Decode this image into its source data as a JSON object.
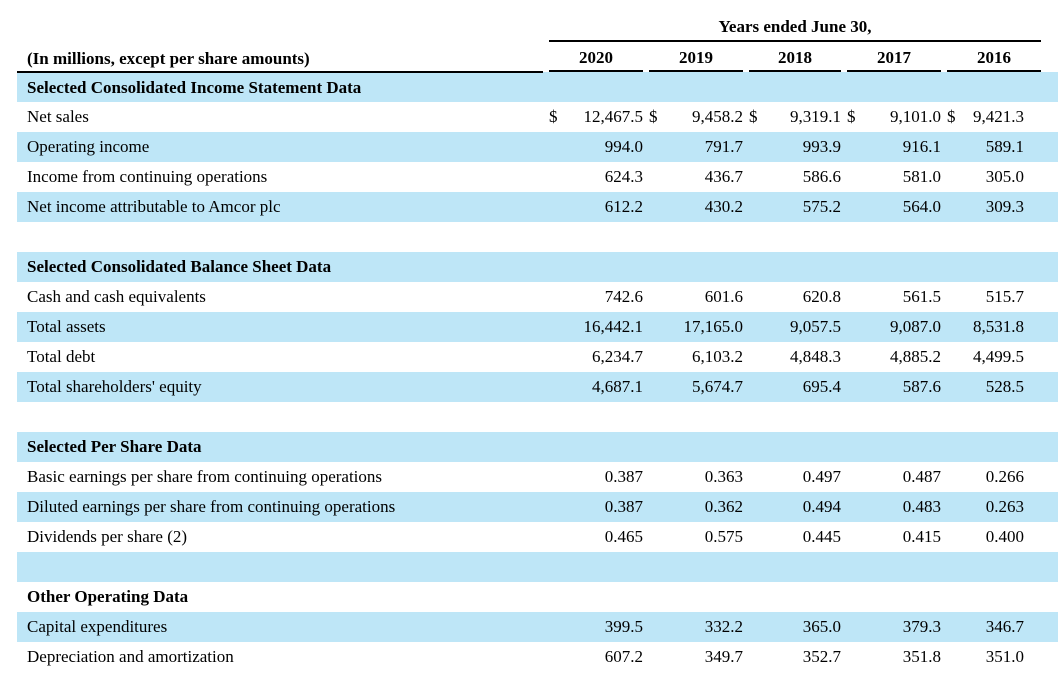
{
  "title": "Years ended June 30,",
  "unit_label": "(In millions, except per share amounts)",
  "currency_symbol": "$",
  "years": [
    "2020",
    "2019",
    "2018",
    "2017",
    "2016"
  ],
  "stripe_color": "#BEE6F7",
  "rule_color": "#000000",
  "sections": [
    {
      "header": "Selected Consolidated Income Statement Data",
      "rows": [
        {
          "label": "Net sales",
          "dollar": true,
          "values": [
            "12,467.5",
            "9,458.2",
            "9,319.1",
            "9,101.0",
            "9,421.3"
          ]
        },
        {
          "label": "Operating income",
          "dollar": false,
          "values": [
            "994.0",
            "791.7",
            "993.9",
            "916.1",
            "589.1"
          ]
        },
        {
          "label": "Income from continuing operations",
          "dollar": false,
          "values": [
            "624.3",
            "436.7",
            "586.6",
            "581.0",
            "305.0"
          ]
        },
        {
          "label": "Net income attributable to Amcor plc",
          "dollar": false,
          "values": [
            "612.2",
            "430.2",
            "575.2",
            "564.0",
            "309.3"
          ]
        }
      ]
    },
    {
      "header": "Selected Consolidated Balance Sheet Data",
      "rows": [
        {
          "label": "Cash and cash equivalents",
          "dollar": false,
          "values": [
            "742.6",
            "601.6",
            "620.8",
            "561.5",
            "515.7"
          ]
        },
        {
          "label": "Total assets",
          "dollar": false,
          "values": [
            "16,442.1",
            "17,165.0",
            "9,057.5",
            "9,087.0",
            "8,531.8"
          ]
        },
        {
          "label": "Total debt",
          "dollar": false,
          "values": [
            "6,234.7",
            "6,103.2",
            "4,848.3",
            "4,885.2",
            "4,499.5"
          ]
        },
        {
          "label": "Total shareholders' equity",
          "dollar": false,
          "values": [
            "4,687.1",
            "5,674.7",
            "695.4",
            "587.6",
            "528.5"
          ]
        }
      ]
    },
    {
      "header": "Selected Per Share Data",
      "rows": [
        {
          "label": "Basic earnings per share from continuing operations",
          "dollar": false,
          "values": [
            "0.387",
            "0.363",
            "0.497",
            "0.487",
            "0.266"
          ]
        },
        {
          "label": "Diluted earnings per share from continuing operations",
          "dollar": false,
          "values": [
            "0.387",
            "0.362",
            "0.494",
            "0.483",
            "0.263"
          ]
        },
        {
          "label": "Dividends per share (2)",
          "dollar": false,
          "values": [
            "0.465",
            "0.575",
            "0.445",
            "0.415",
            "0.400"
          ]
        }
      ]
    },
    {
      "header": "Other Operating Data",
      "rows": [
        {
          "label": "Capital expenditures",
          "dollar": false,
          "values": [
            "399.5",
            "332.2",
            "365.0",
            "379.3",
            "346.7"
          ]
        },
        {
          "label": "Depreciation and amortization",
          "dollar": false,
          "values": [
            "607.2",
            "349.7",
            "352.7",
            "351.8",
            "351.0"
          ]
        }
      ]
    }
  ]
}
